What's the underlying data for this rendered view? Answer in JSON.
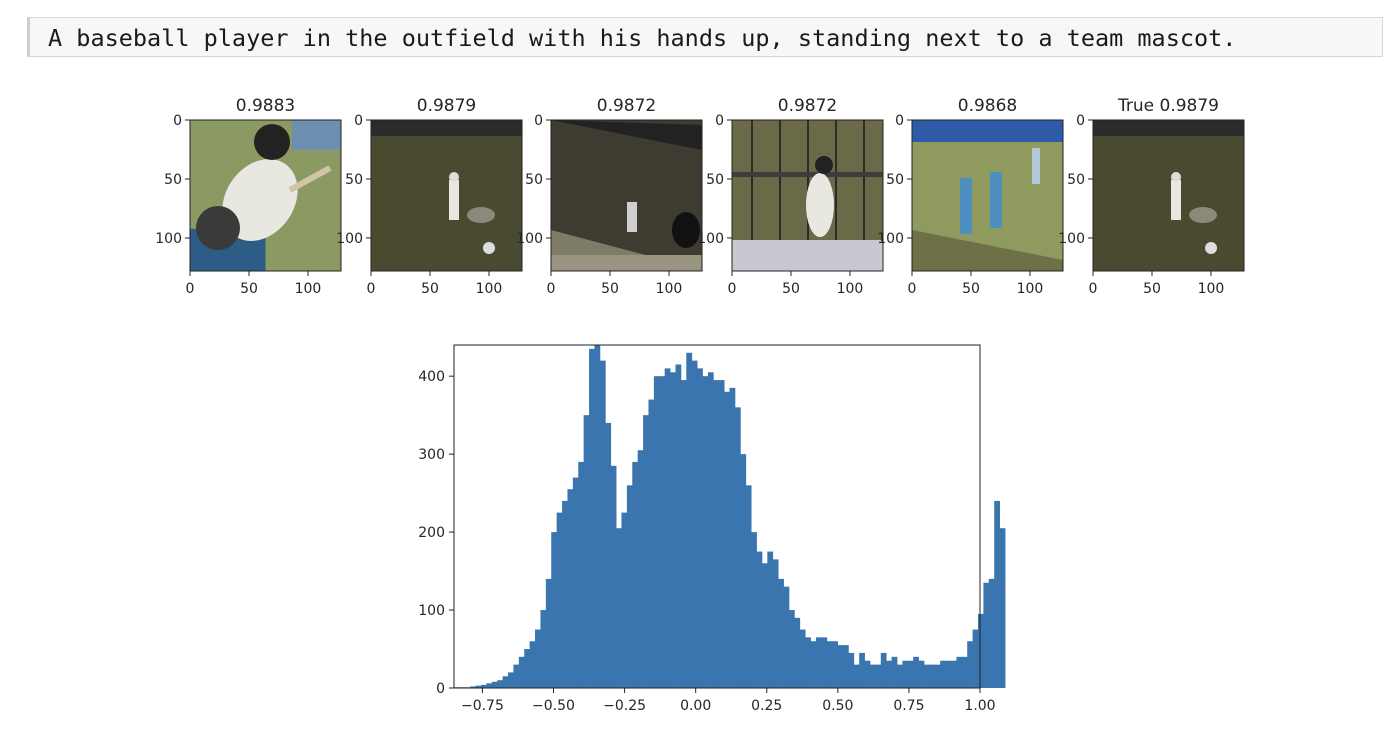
{
  "caption": "A baseball player in the outfield with his hands up, standing next to a team mascot.",
  "thumbnails": {
    "titles": [
      "0.9883",
      "0.9879",
      "0.9872",
      "0.9872",
      "0.9868",
      "True 0.9879"
    ],
    "y_ticks": [
      "0",
      "50",
      "100"
    ],
    "x_ticks": [
      "0",
      "50",
      "100"
    ],
    "image_extent": [
      0,
      128
    ],
    "images": [
      "batter-closeup-photo",
      "outfield-player-with-mascot-photo",
      "batter-and-catcher-at-plate-photo",
      "batter-in-cage-photo",
      "players-on-field-photo",
      "outfield-player-with-mascot-photo"
    ],
    "image_colors": {
      "grass_light": "#8a9a62",
      "grass_dark": "#4a4a30",
      "grass_mid": "#8f9a5e",
      "uniform_white": "#e8e8e0",
      "uniform_blue": "#4f8fc0"
    }
  },
  "chart_data": {
    "type": "bar",
    "title": "",
    "xlabel": "",
    "ylabel": "",
    "bin_start": -0.85,
    "bin_width": 0.019,
    "values": [
      1,
      1,
      1,
      2,
      3,
      4,
      6,
      8,
      10,
      15,
      20,
      30,
      40,
      50,
      60,
      75,
      100,
      140,
      200,
      225,
      240,
      255,
      270,
      290,
      350,
      435,
      440,
      420,
      340,
      285,
      205,
      225,
      260,
      290,
      305,
      350,
      370,
      400,
      400,
      410,
      405,
      415,
      395,
      430,
      420,
      410,
      400,
      405,
      395,
      395,
      380,
      385,
      360,
      300,
      260,
      200,
      175,
      160,
      175,
      165,
      140,
      130,
      100,
      90,
      75,
      65,
      60,
      65,
      65,
      60,
      60,
      55,
      55,
      45,
      30,
      45,
      35,
      30,
      30,
      45,
      35,
      40,
      30,
      35,
      35,
      40,
      35,
      30,
      30,
      30,
      35,
      35,
      35,
      40,
      40,
      60,
      75,
      95,
      135,
      140,
      240,
      205
    ],
    "xlim": [
      -0.85,
      1.0
    ],
    "ylim": [
      0,
      440
    ],
    "x_ticks": [
      -0.75,
      -0.5,
      -0.25,
      0.0,
      0.25,
      0.5,
      0.75,
      1.0
    ],
    "x_tick_labels": [
      "−0.75",
      "−0.50",
      "−0.25",
      "0.00",
      "0.25",
      "0.50",
      "0.75",
      "1.00"
    ],
    "y_ticks": [
      0,
      100,
      200,
      300,
      400
    ],
    "y_tick_labels": [
      "0",
      "100",
      "200",
      "300",
      "400"
    ],
    "bar_color": "#3a75b0",
    "grid": false
  }
}
